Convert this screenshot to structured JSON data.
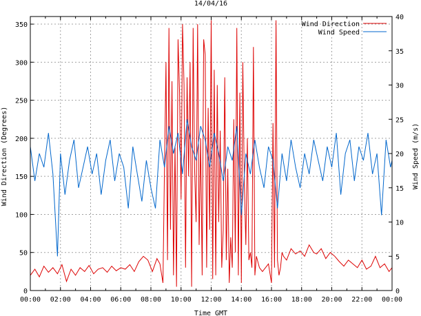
{
  "chart_data": {
    "type": "line",
    "title": "14/04/16",
    "xlabel": "Time GMT",
    "ylabel_left": "Wind Direction (Degrees)",
    "ylabel_right": "Wind Speed (m/s)",
    "x_ticks": [
      "00:00",
      "02:00",
      "04:00",
      "06:00",
      "08:00",
      "10:00",
      "12:00",
      "14:00",
      "16:00",
      "18:00",
      "20:00",
      "22:00",
      "00:00"
    ],
    "xlim_hours": [
      0,
      24
    ],
    "y_left_ticks": [
      "0",
      "50",
      "100",
      "150",
      "200",
      "250",
      "300",
      "350"
    ],
    "y_right_ticks": [
      "0",
      "5",
      "10",
      "15",
      "20",
      "25",
      "30",
      "35",
      "40"
    ],
    "y_left_lim": [
      0,
      360
    ],
    "y_right_lim": [
      0,
      40
    ],
    "grid": true,
    "legend_position": "top-right",
    "series": [
      {
        "name": "Wind Direction",
        "axis": "left",
        "color": "#dd0000",
        "x": [
          0,
          0.3,
          0.6,
          0.9,
          1.2,
          1.5,
          1.8,
          2.1,
          2.4,
          2.7,
          3.0,
          3.3,
          3.6,
          3.9,
          4.2,
          4.5,
          4.8,
          5.1,
          5.4,
          5.7,
          6.0,
          6.3,
          6.6,
          6.9,
          7.2,
          7.5,
          7.8,
          8.1,
          8.4,
          8.6,
          8.8,
          8.9,
          9.0,
          9.1,
          9.2,
          9.3,
          9.4,
          9.5,
          9.6,
          9.7,
          9.8,
          9.9,
          10.0,
          10.1,
          10.2,
          10.3,
          10.4,
          10.5,
          10.6,
          10.7,
          10.8,
          10.9,
          11.0,
          11.1,
          11.2,
          11.3,
          11.4,
          11.5,
          11.6,
          11.7,
          11.8,
          11.9,
          12.0,
          12.1,
          12.2,
          12.3,
          12.4,
          12.5,
          12.6,
          12.7,
          12.8,
          12.9,
          13.0,
          13.1,
          13.2,
          13.3,
          13.4,
          13.5,
          13.6,
          13.7,
          13.8,
          13.9,
          14.0,
          14.1,
          14.2,
          14.3,
          14.4,
          14.5,
          14.6,
          14.7,
          14.8,
          14.9,
          15.0,
          15.2,
          15.4,
          15.6,
          15.8,
          16.0,
          16.1,
          16.2,
          16.3,
          16.4,
          16.5,
          16.6,
          16.7,
          16.8,
          17.0,
          17.3,
          17.6,
          17.9,
          18.2,
          18.5,
          18.8,
          19.0,
          19.3,
          19.6,
          19.9,
          20.2,
          20.5,
          20.8,
          21.1,
          21.4,
          21.7,
          22.0,
          22.3,
          22.6,
          22.9,
          23.2,
          23.5,
          23.8,
          24.0
        ],
        "values": [
          20,
          28,
          18,
          32,
          24,
          30,
          22,
          34,
          12,
          28,
          20,
          30,
          25,
          33,
          22,
          28,
          30,
          24,
          32,
          26,
          30,
          28,
          34,
          25,
          38,
          45,
          40,
          25,
          42,
          35,
          10,
          160,
          300,
          40,
          345,
          80,
          275,
          20,
          190,
          5,
          330,
          260,
          120,
          350,
          270,
          30,
          280,
          150,
          300,
          5,
          345,
          160,
          90,
          350,
          60,
          200,
          20,
          330,
          310,
          30,
          240,
          80,
          355,
          15,
          290,
          20,
          270,
          90,
          210,
          30,
          80,
          280,
          40,
          160,
          10,
          70,
          30,
          225,
          50,
          345,
          20,
          260,
          10,
          300,
          140,
          60,
          200,
          40,
          50,
          30,
          320,
          20,
          45,
          30,
          25,
          30,
          35,
          10,
          220,
          30,
          355,
          40,
          20,
          30,
          50,
          45,
          40,
          55,
          48,
          52,
          45,
          60,
          50,
          48,
          55,
          42,
          50,
          45,
          38,
          32,
          40,
          35,
          30,
          40,
          28,
          32,
          45,
          30,
          35,
          25,
          30
        ],
        "labels_y_unit": "degrees"
      },
      {
        "name": "Wind Speed",
        "axis": "right",
        "color": "#0066cc",
        "x": [
          0,
          0.3,
          0.6,
          0.9,
          1.2,
          1.5,
          1.8,
          2.0,
          2.3,
          2.6,
          2.9,
          3.2,
          3.5,
          3.8,
          4.1,
          4.4,
          4.7,
          5.0,
          5.3,
          5.6,
          5.9,
          6.2,
          6.5,
          6.8,
          7.1,
          7.4,
          7.7,
          8.0,
          8.3,
          8.6,
          8.9,
          9.2,
          9.5,
          9.8,
          10.1,
          10.4,
          10.7,
          11.0,
          11.3,
          11.6,
          11.9,
          12.2,
          12.5,
          12.8,
          13.1,
          13.4,
          13.7,
          14.0,
          14.3,
          14.6,
          14.9,
          15.2,
          15.5,
          15.8,
          16.1,
          16.4,
          16.7,
          17.0,
          17.3,
          17.6,
          17.9,
          18.2,
          18.5,
          18.8,
          19.1,
          19.4,
          19.7,
          20.0,
          20.3,
          20.6,
          20.9,
          21.2,
          21.5,
          21.8,
          22.1,
          22.4,
          22.7,
          23.0,
          23.3,
          23.6,
          23.9,
          24.0
        ],
        "values": [
          21,
          16,
          20,
          18,
          23,
          17,
          5,
          20,
          14,
          19,
          22,
          15,
          18,
          21,
          17,
          20,
          14,
          19,
          22,
          16,
          20,
          18,
          12,
          21,
          17,
          13,
          19,
          15,
          12,
          22,
          18,
          24,
          20,
          23,
          17,
          25,
          21,
          19,
          24,
          22,
          18,
          23,
          20,
          16,
          21,
          19,
          24,
          11,
          20,
          17,
          22,
          18,
          15,
          21,
          19,
          12,
          20,
          16,
          22,
          18,
          15,
          20,
          17,
          22,
          19,
          16,
          21,
          18,
          23,
          14,
          20,
          22,
          16,
          21,
          19,
          23,
          17,
          20,
          11,
          22,
          18,
          19
        ]
      }
    ]
  }
}
